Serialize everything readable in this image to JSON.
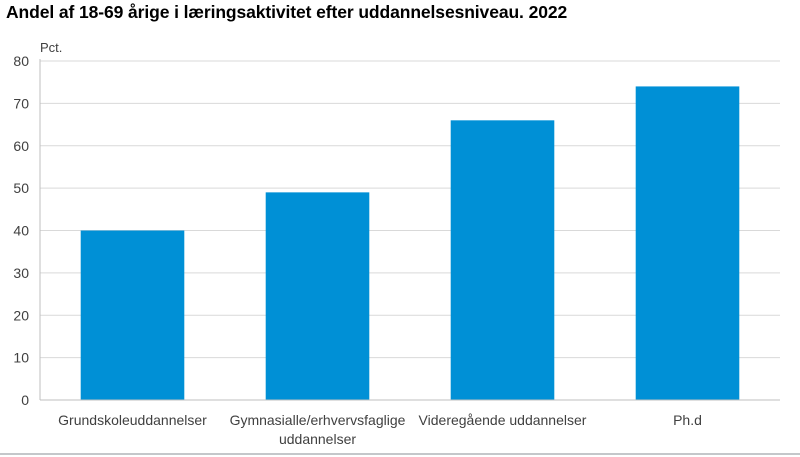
{
  "chart_data": {
    "type": "bar",
    "title": "Andel af 18-69 årige i læringsaktivitet efter uddannelsesniveau. 2022",
    "ylabel": "Pct.",
    "xlabel": "",
    "categories": [
      [
        "Grundskoleuddannelser"
      ],
      [
        "Gymnasialle/erhvervsfaglige",
        "uddannelser"
      ],
      [
        "Videregående uddannelser"
      ],
      [
        "Ph.d"
      ]
    ],
    "values": [
      40,
      49,
      66,
      74
    ],
    "ylim": [
      0,
      80
    ],
    "yticks": [
      "0",
      "10",
      "20",
      "30",
      "40",
      "50",
      "60",
      "70",
      "80"
    ],
    "grid": true,
    "legend": "none",
    "bar_color": "#0090d6",
    "grid_color": "#d9d9d9",
    "axis_color": "#bfbfbf"
  }
}
